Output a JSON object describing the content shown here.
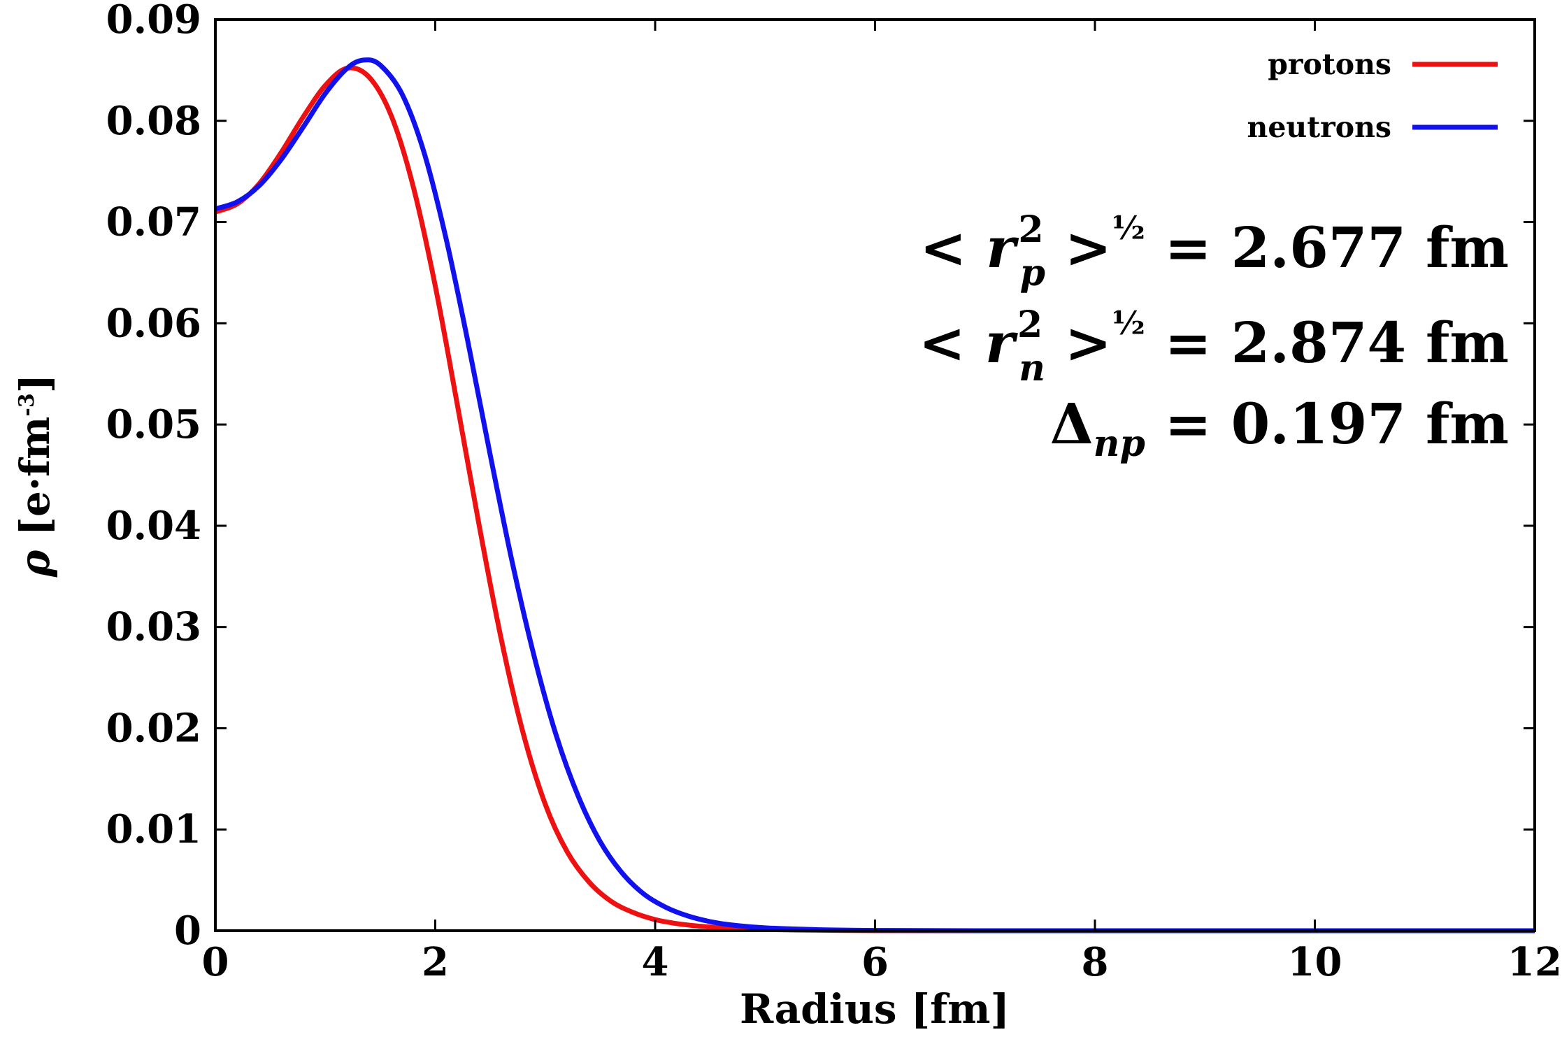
{
  "chart_data": {
    "type": "line",
    "xlabel": "Radius [fm]",
    "ylabel": {
      "symbol": "ρ",
      "rest": " [e·fm",
      "exp": "-3",
      "close": "]"
    },
    "xlim": [
      0,
      12
    ],
    "ylim": [
      0,
      0.09
    ],
    "xticks": [
      "0",
      "2",
      "4",
      "6",
      "8",
      "10",
      "12"
    ],
    "yticks": [
      "0",
      "0.01",
      "0.02",
      "0.03",
      "0.04",
      "0.05",
      "0.06",
      "0.07",
      "0.08",
      "0.09"
    ],
    "grid": false,
    "legend_position": "top-right",
    "series": [
      {
        "name": "protons",
        "color": "#ee1111",
        "points": [
          [
            0,
            0.071
          ],
          [
            0.2,
            0.0718
          ],
          [
            0.4,
            0.0738
          ],
          [
            0.6,
            0.0769
          ],
          [
            0.8,
            0.0804
          ],
          [
            1.0,
            0.0835
          ],
          [
            1.2,
            0.0852
          ],
          [
            1.4,
            0.0843
          ],
          [
            1.6,
            0.0805
          ],
          [
            1.8,
            0.0735
          ],
          [
            2.0,
            0.0637
          ],
          [
            2.2,
            0.052
          ],
          [
            2.4,
            0.04
          ],
          [
            2.6,
            0.0288
          ],
          [
            2.8,
            0.0195
          ],
          [
            3.0,
            0.0125
          ],
          [
            3.2,
            0.0078
          ],
          [
            3.4,
            0.0048
          ],
          [
            3.6,
            0.0029
          ],
          [
            3.8,
            0.0018
          ],
          [
            4.0,
            0.0011
          ],
          [
            4.2,
            0.0007
          ],
          [
            4.4,
            0.00045
          ],
          [
            4.6,
            0.0003
          ],
          [
            4.8,
            0.0002
          ],
          [
            5.0,
            0.00012
          ],
          [
            5.5,
            4e-05
          ],
          [
            6.0,
            1e-05
          ],
          [
            7.0,
            0
          ],
          [
            8.0,
            0
          ],
          [
            10.0,
            0
          ],
          [
            12.0,
            0
          ]
        ]
      },
      {
        "name": "neutrons",
        "color": "#1111ee",
        "points": [
          [
            0,
            0.0713
          ],
          [
            0.2,
            0.072
          ],
          [
            0.4,
            0.0736
          ],
          [
            0.6,
            0.0762
          ],
          [
            0.8,
            0.0794
          ],
          [
            1.0,
            0.0827
          ],
          [
            1.2,
            0.0852
          ],
          [
            1.35,
            0.086
          ],
          [
            1.5,
            0.0855
          ],
          [
            1.7,
            0.0826
          ],
          [
            1.9,
            0.0768
          ],
          [
            2.1,
            0.0683
          ],
          [
            2.3,
            0.058
          ],
          [
            2.5,
            0.047
          ],
          [
            2.7,
            0.0364
          ],
          [
            2.9,
            0.0271
          ],
          [
            3.1,
            0.0193
          ],
          [
            3.3,
            0.0133
          ],
          [
            3.5,
            0.0088
          ],
          [
            3.7,
            0.0057
          ],
          [
            3.9,
            0.0036
          ],
          [
            4.1,
            0.0023
          ],
          [
            4.3,
            0.00145
          ],
          [
            4.5,
            0.0009
          ],
          [
            4.7,
            0.00056
          ],
          [
            5.0,
            0.00028
          ],
          [
            5.5,
            0.0001
          ],
          [
            6.0,
            3e-05
          ],
          [
            7.0,
            0
          ],
          [
            8.0,
            0
          ],
          [
            10.0,
            0
          ],
          [
            12.0,
            0
          ]
        ]
      }
    ],
    "annotations": [
      {
        "prefix": "< ",
        "var": "r",
        "sub": "p",
        "sup": "2",
        "mid": " >",
        "power": "½",
        "suffix": " = 2.677 fm"
      },
      {
        "prefix": "< ",
        "var": "r",
        "sub": "n",
        "sup": "2",
        "mid": " >",
        "power": "½",
        "suffix": " = 2.874 fm"
      },
      {
        "prefix": "",
        "var": "Δ",
        "sub": "np",
        "sup": "",
        "mid": "",
        "power": "",
        "suffix": " = 0.197 fm"
      }
    ]
  }
}
